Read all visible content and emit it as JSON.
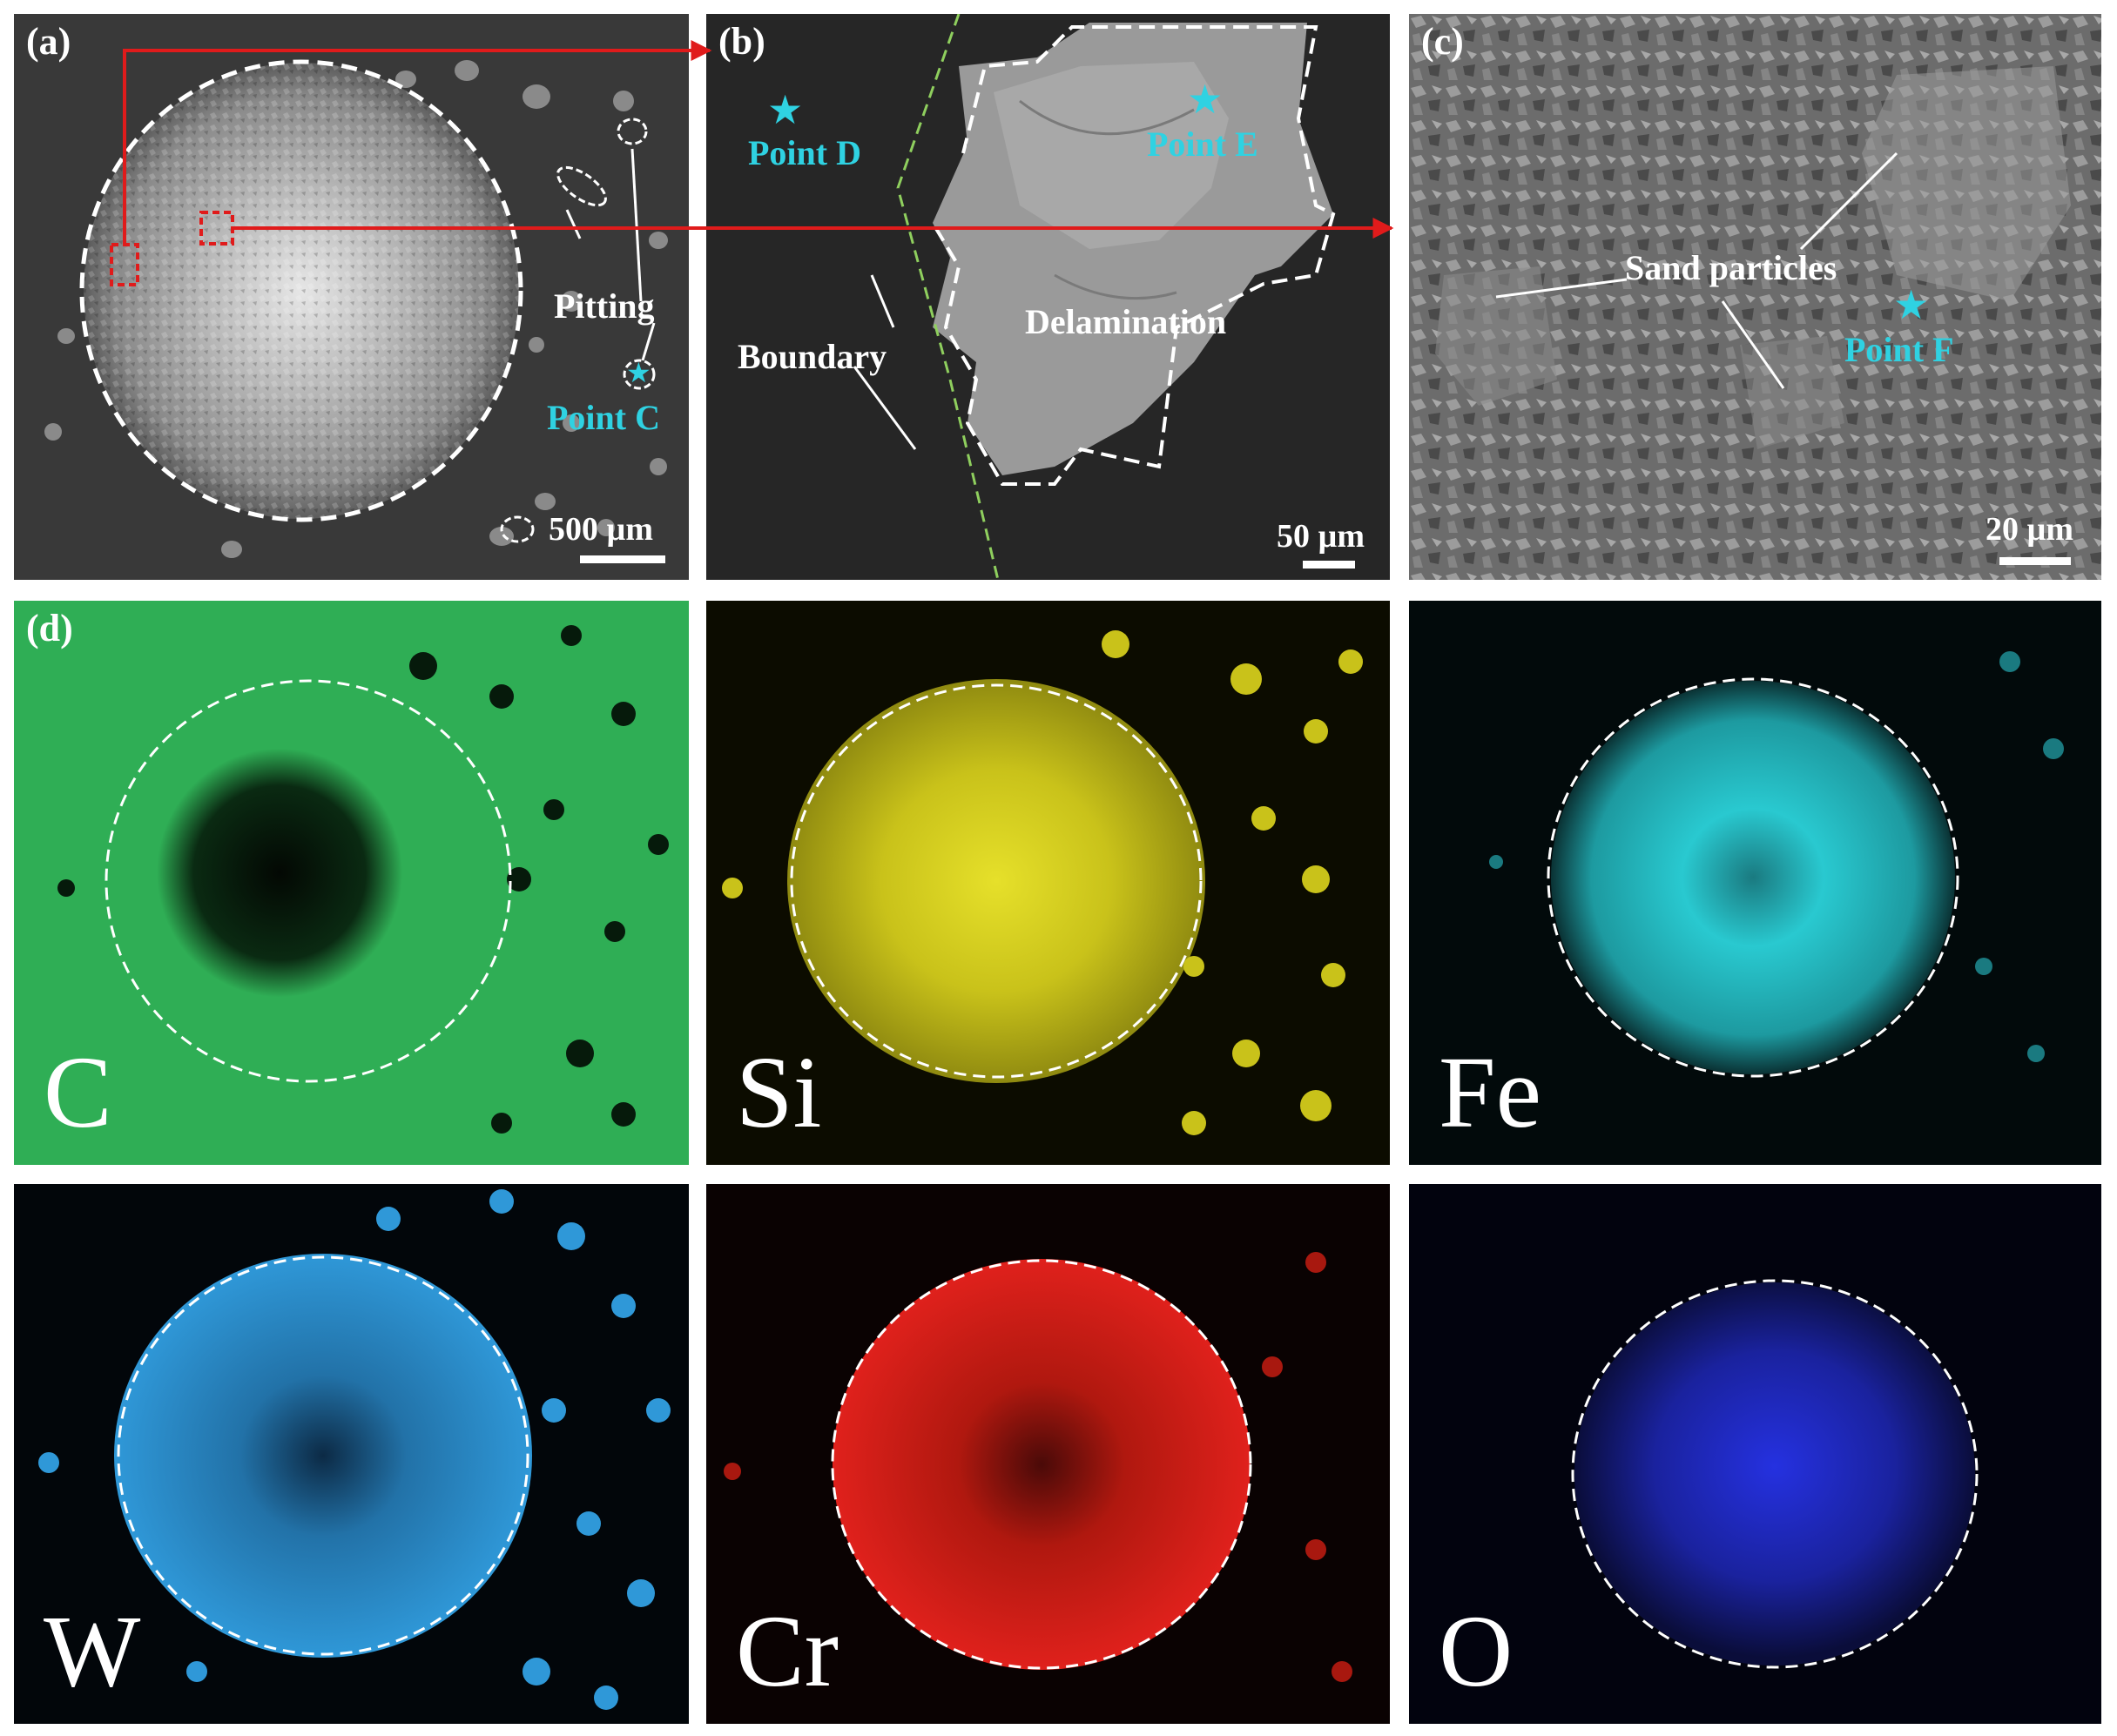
{
  "panels": {
    "a": {
      "label": "(a)",
      "annotations": {
        "pitting": "Pitting",
        "point_c": "Point C"
      },
      "scale_bar": "500 µm"
    },
    "b": {
      "label": "(b)",
      "annotations": {
        "point_d": "Point D",
        "point_e": "Point E",
        "boundary": "Boundary",
        "delamination": "Delamination"
      },
      "scale_bar": "50 µm"
    },
    "c": {
      "label": "(c)",
      "annotations": {
        "sand_particles": "Sand particles",
        "point_f": "Point F"
      },
      "scale_bar": "20 µm"
    },
    "d": {
      "label": "(d)"
    }
  },
  "eds_maps": [
    {
      "element": "C",
      "color": "#2fae55"
    },
    {
      "element": "Si",
      "color": "#d8d21c"
    },
    {
      "element": "Fe",
      "color": "#29c9d0"
    },
    {
      "element": "W",
      "color": "#2f98d8"
    },
    {
      "element": "Cr",
      "color": "#e0211c"
    },
    {
      "element": "O",
      "color": "#2531e0"
    }
  ],
  "colors": {
    "arrow_red": "#e01b1b",
    "marker_cyan": "#2fd2e2",
    "boundary_green": "#8fcf5e"
  }
}
